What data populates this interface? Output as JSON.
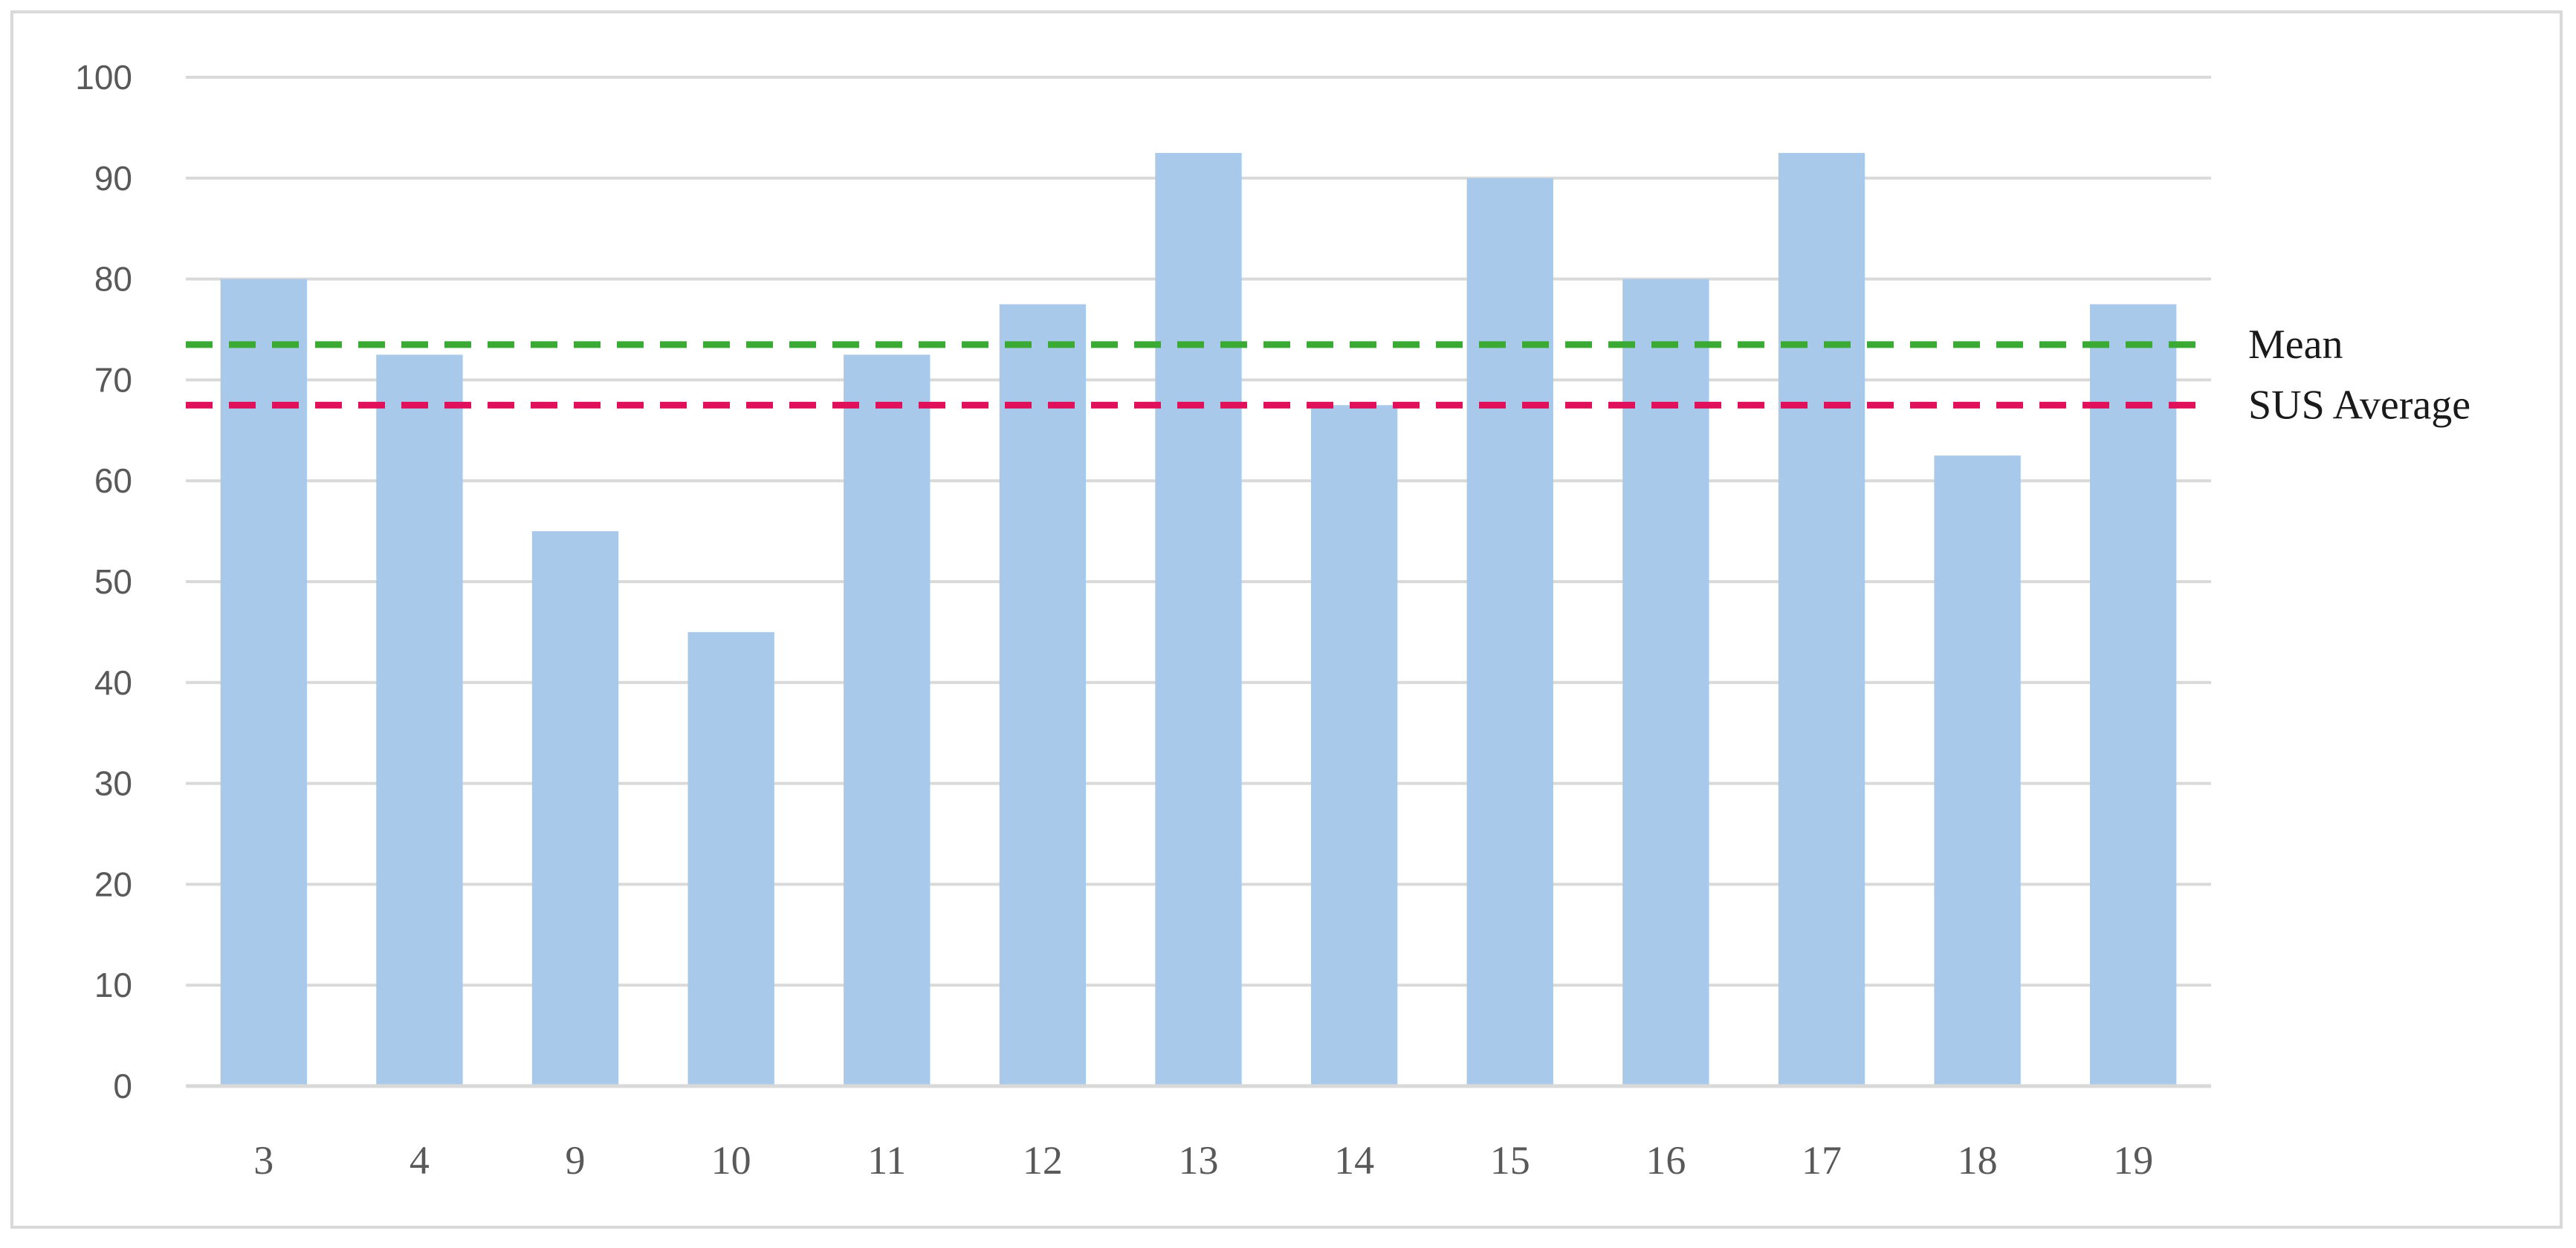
{
  "chart_data": {
    "type": "bar",
    "categories": [
      "3",
      "4",
      "9",
      "10",
      "11",
      "12",
      "13",
      "14",
      "15",
      "16",
      "17",
      "18",
      "19"
    ],
    "values": [
      80,
      72.5,
      55,
      45,
      72.5,
      77.5,
      92.5,
      67.5,
      90,
      80,
      92.5,
      62.5,
      77.5
    ],
    "ylim": [
      0,
      100
    ],
    "yticks": [
      0,
      10,
      20,
      30,
      40,
      50,
      60,
      70,
      80,
      90,
      100
    ],
    "grid": true,
    "bar_color": "#a9c9eb",
    "reference_lines": [
      {
        "label": "Mean",
        "value": 73.5,
        "color": "#3aaa35",
        "style": "dashed"
      },
      {
        "label": "SUS Average",
        "value": 67.5,
        "color": "#e0105a",
        "style": "dashed"
      }
    ]
  }
}
